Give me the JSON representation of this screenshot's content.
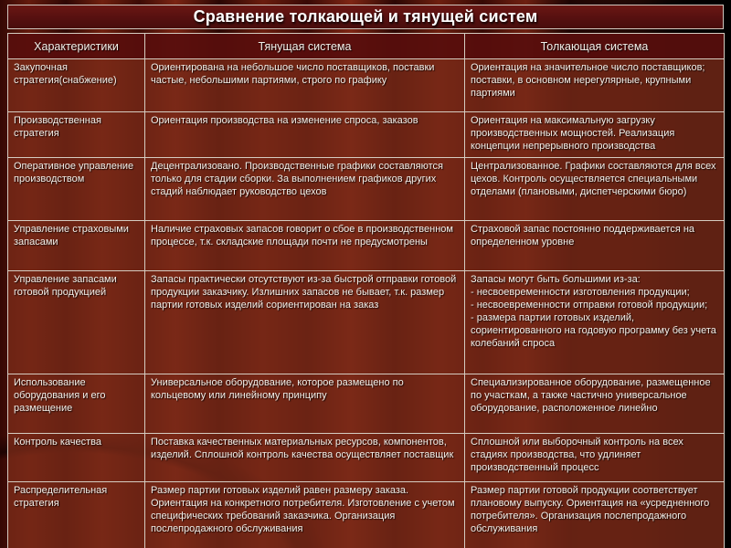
{
  "title": "Сравнение толкающей и тянущей систем",
  "colors": {
    "background_red": "#5e170c",
    "background_fade": "#000000",
    "title_bar": "#561010",
    "header_row": "#580e0d",
    "body_cell": "#7a2a18",
    "border": "#d5ccc1",
    "text": "#f3efe9"
  },
  "table": {
    "headers": [
      "Характеристики",
      "Тянущая система",
      "Толкающая система"
    ],
    "rows": [
      {
        "characteristic": "Закупочная стратегия(снабжение)",
        "pull": "Ориентирована на небольшое число поставщиков, поставки частые, небольшими партиями, строго по графику",
        "push": "Ориентация на значительное число поставщиков; поставки, в основном нерегулярные, крупными партиями"
      },
      {
        "characteristic": "Производственная стратегия",
        "pull": "Ориентация производства на изменение спроса, заказов",
        "push": "Ориентация на максимальную загрузку производственных мощностей. Реализация концепции непрерывного производства"
      },
      {
        "characteristic": "Оперативное управление производством",
        "pull": "Децентрализовано. Производственные графики составляются только для стадии сборки. За выполнением графиков других стадий наблюдает руководство цехов",
        "push": "Централизованное. Графики составляются для всех цехов. Контроль осуществляется специальными отделами (плановыми, диспетчерскими бюро)"
      },
      {
        "characteristic": "Управление страховыми запасами",
        "pull": "Наличие страховых запасов говорит о сбое в производственном процессе, т.к. складские площади почти не предусмотрены",
        "push": "Страховой запас постоянно поддерживается на определенном уровне"
      },
      {
        "characteristic": "Управление запасами готовой продукцией",
        "pull": "Запасы практически отсутствуют из-за быстрой отправки готовой продукции заказчику. Излишних запасов не бывает, т.к. размер партии готовых изделий сориентирован на заказ",
        "push": "Запасы могут быть большими из-за:\n- несвоевременности изготовления продукции;\n- несвоевременности отправки готовой продукции;\n- размера партии готовых изделий, сориентированного на годовую программу без учета колебаний спроса"
      },
      {
        "characteristic": "Использование оборудования и его размещение",
        "pull": "Универсальное оборудование, которое размещено по кольцевому или линейному принципу",
        "push": "Специализированное оборудование, размещенное по участкам, а также частично универсальное оборудование, расположенное линейно"
      },
      {
        "characteristic": "Контроль качества",
        "pull": "Поставка качественных материальных ресурсов, компонентов, изделий. Сплошной контроль качества осуществляет поставщик",
        "push": "Сплошной или выборочный контроль на всех стадиях производства, что удлиняет производственный процесс"
      },
      {
        "characteristic": "Распределительная стратегия",
        "pull": "Размер партии готовых изделий равен размеру заказа. Ориентация на конкретного потребителя. Изготовление с учетом специфических требований заказчика. Организация послепродажного обслуживания",
        "push": "Размер партии готовой продукции соответствует плановому выпуску. Ориентация на «усредненного потребителя». Организация послепродажного обслуживания"
      }
    ]
  }
}
